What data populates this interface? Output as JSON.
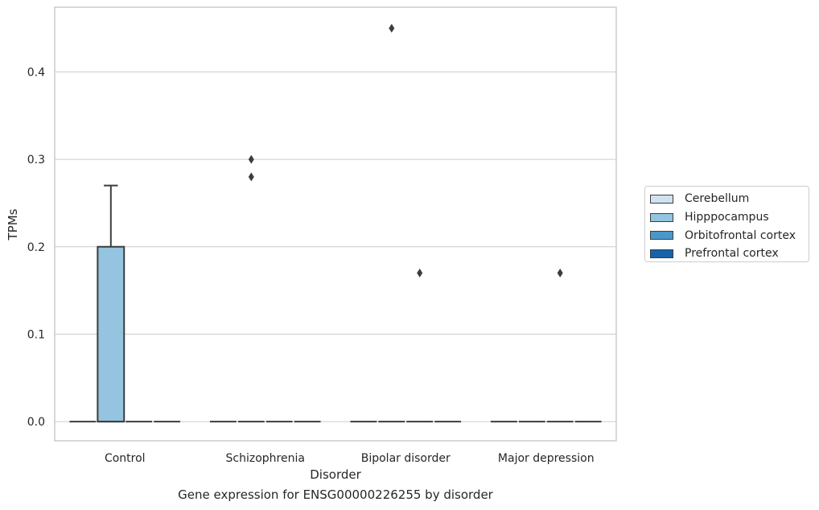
{
  "chart_data": {
    "type": "box",
    "title": "",
    "caption": "Gene expression for ENSG00000226255 by disorder",
    "xlabel": "Disorder",
    "ylabel": "TPMs",
    "ylim": [
      -0.022,
      0.474
    ],
    "yticks": [
      0.0,
      0.1,
      0.2,
      0.3,
      0.4
    ],
    "ytick_labels": [
      "0.0",
      "0.1",
      "0.2",
      "0.3",
      "0.4"
    ],
    "grid": "y",
    "legend_placement": "outside-right",
    "categories": [
      "Control",
      "Schizophrenia",
      "Bipolar disorder",
      "Major depression"
    ],
    "series": [
      {
        "name": "Cerebellum",
        "color": "#d0e1f2",
        "boxes": [
          {
            "q1": 0,
            "median": 0,
            "q3": 0,
            "whisker_low": 0,
            "whisker_high": 0,
            "outliers": []
          },
          {
            "q1": 0,
            "median": 0,
            "q3": 0,
            "whisker_low": 0,
            "whisker_high": 0,
            "outliers": []
          },
          {
            "q1": 0,
            "median": 0,
            "q3": 0,
            "whisker_low": 0,
            "whisker_high": 0,
            "outliers": []
          },
          {
            "q1": 0,
            "median": 0,
            "q3": 0,
            "whisker_low": 0,
            "whisker_high": 0,
            "outliers": []
          }
        ]
      },
      {
        "name": "Hipppocampus",
        "color": "#94c4df",
        "boxes": [
          {
            "q1": 0,
            "median": 0,
            "q3": 0.2,
            "whisker_low": 0,
            "whisker_high": 0.27,
            "outliers": []
          },
          {
            "q1": 0,
            "median": 0,
            "q3": 0,
            "whisker_low": 0,
            "whisker_high": 0,
            "outliers": [
              0.3,
              0.28
            ]
          },
          {
            "q1": 0,
            "median": 0,
            "q3": 0,
            "whisker_low": 0,
            "whisker_high": 0,
            "outliers": [
              0.45
            ]
          },
          {
            "q1": 0,
            "median": 0,
            "q3": 0,
            "whisker_low": 0,
            "whisker_high": 0,
            "outliers": []
          }
        ]
      },
      {
        "name": "Orbitofrontal cortex",
        "color": "#4a98c9",
        "boxes": [
          {
            "q1": 0,
            "median": 0,
            "q3": 0,
            "whisker_low": 0,
            "whisker_high": 0,
            "outliers": []
          },
          {
            "q1": 0,
            "median": 0,
            "q3": 0,
            "whisker_low": 0,
            "whisker_high": 0,
            "outliers": []
          },
          {
            "q1": 0,
            "median": 0,
            "q3": 0,
            "whisker_low": 0,
            "whisker_high": 0,
            "outliers": [
              0.17
            ]
          },
          {
            "q1": 0,
            "median": 0,
            "q3": 0,
            "whisker_low": 0,
            "whisker_high": 0,
            "outliers": [
              0.17
            ]
          }
        ]
      },
      {
        "name": "Prefrontal cortex",
        "color": "#1764ab",
        "boxes": [
          {
            "q1": 0,
            "median": 0,
            "q3": 0,
            "whisker_low": 0,
            "whisker_high": 0,
            "outliers": []
          },
          {
            "q1": 0,
            "median": 0,
            "q3": 0,
            "whisker_low": 0,
            "whisker_high": 0,
            "outliers": []
          },
          {
            "q1": 0,
            "median": 0,
            "q3": 0,
            "whisker_low": 0,
            "whisker_high": 0,
            "outliers": []
          },
          {
            "q1": 0,
            "median": 0,
            "q3": 0,
            "whisker_low": 0,
            "whisker_high": 0,
            "outliers": []
          }
        ]
      }
    ]
  }
}
